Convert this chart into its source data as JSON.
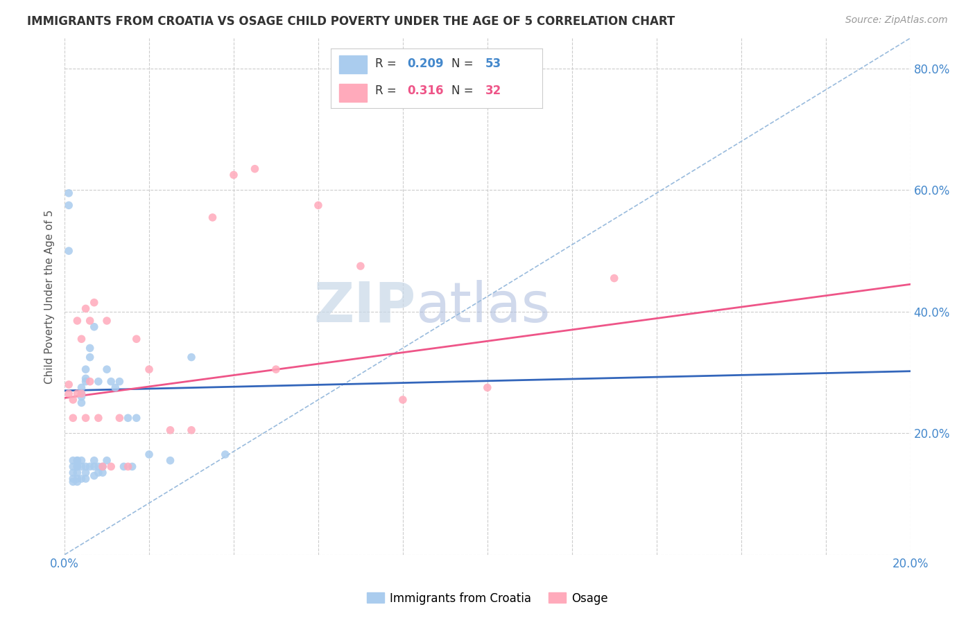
{
  "title": "IMMIGRANTS FROM CROATIA VS OSAGE CHILD POVERTY UNDER THE AGE OF 5 CORRELATION CHART",
  "source": "Source: ZipAtlas.com",
  "ylabel_label": "Child Poverty Under the Age of 5",
  "x_min": 0.0,
  "x_max": 0.2,
  "y_min": 0.0,
  "y_max": 0.85,
  "x_ticks": [
    0.0,
    0.02,
    0.04,
    0.06,
    0.08,
    0.1,
    0.12,
    0.14,
    0.16,
    0.18,
    0.2
  ],
  "y_ticks": [
    0.0,
    0.2,
    0.4,
    0.6,
    0.8
  ],
  "grid_color": "#cccccc",
  "background_color": "#ffffff",
  "legend_R1": "0.209",
  "legend_N1": "53",
  "legend_R2": "0.316",
  "legend_N2": "32",
  "blue_color": "#aaccee",
  "pink_color": "#ffaabb",
  "blue_line_color": "#3366bb",
  "pink_line_color": "#ee5588",
  "dashed_line_color": "#99bbdd",
  "blue_scatter_x": [
    0.001,
    0.001,
    0.001,
    0.002,
    0.002,
    0.002,
    0.002,
    0.002,
    0.003,
    0.003,
    0.003,
    0.003,
    0.003,
    0.003,
    0.003,
    0.004,
    0.004,
    0.004,
    0.004,
    0.004,
    0.004,
    0.004,
    0.005,
    0.005,
    0.005,
    0.005,
    0.005,
    0.005,
    0.006,
    0.006,
    0.006,
    0.007,
    0.007,
    0.007,
    0.007,
    0.008,
    0.008,
    0.008,
    0.009,
    0.009,
    0.01,
    0.01,
    0.011,
    0.012,
    0.013,
    0.014,
    0.015,
    0.016,
    0.017,
    0.02,
    0.025,
    0.03,
    0.038
  ],
  "blue_scatter_y": [
    0.575,
    0.595,
    0.5,
    0.145,
    0.135,
    0.155,
    0.125,
    0.12,
    0.155,
    0.145,
    0.135,
    0.125,
    0.12,
    0.155,
    0.145,
    0.265,
    0.275,
    0.26,
    0.25,
    0.155,
    0.145,
    0.125,
    0.29,
    0.285,
    0.305,
    0.145,
    0.135,
    0.125,
    0.325,
    0.34,
    0.145,
    0.375,
    0.155,
    0.145,
    0.13,
    0.285,
    0.145,
    0.135,
    0.145,
    0.135,
    0.305,
    0.155,
    0.285,
    0.275,
    0.285,
    0.145,
    0.225,
    0.145,
    0.225,
    0.165,
    0.155,
    0.325,
    0.165
  ],
  "pink_scatter_x": [
    0.001,
    0.001,
    0.002,
    0.002,
    0.003,
    0.003,
    0.004,
    0.004,
    0.005,
    0.005,
    0.006,
    0.006,
    0.007,
    0.008,
    0.009,
    0.01,
    0.011,
    0.013,
    0.015,
    0.017,
    0.02,
    0.025,
    0.03,
    0.035,
    0.04,
    0.045,
    0.05,
    0.06,
    0.07,
    0.08,
    0.1,
    0.13
  ],
  "pink_scatter_y": [
    0.265,
    0.28,
    0.225,
    0.255,
    0.265,
    0.385,
    0.265,
    0.355,
    0.225,
    0.405,
    0.385,
    0.285,
    0.415,
    0.225,
    0.145,
    0.385,
    0.145,
    0.225,
    0.145,
    0.355,
    0.305,
    0.205,
    0.205,
    0.555,
    0.625,
    0.635,
    0.305,
    0.575,
    0.475,
    0.255,
    0.275,
    0.455
  ],
  "blue_trendline_x": [
    0.0,
    0.2
  ],
  "blue_trendline_y": [
    0.27,
    0.302
  ],
  "pink_trendline_x": [
    0.0,
    0.2
  ],
  "pink_trendline_y": [
    0.258,
    0.445
  ],
  "dashed_trendline_x": [
    0.0,
    0.2
  ],
  "dashed_trendline_y": [
    0.0,
    0.85
  ],
  "legend_label1": "Immigrants from Croatia",
  "legend_label2": "Osage"
}
